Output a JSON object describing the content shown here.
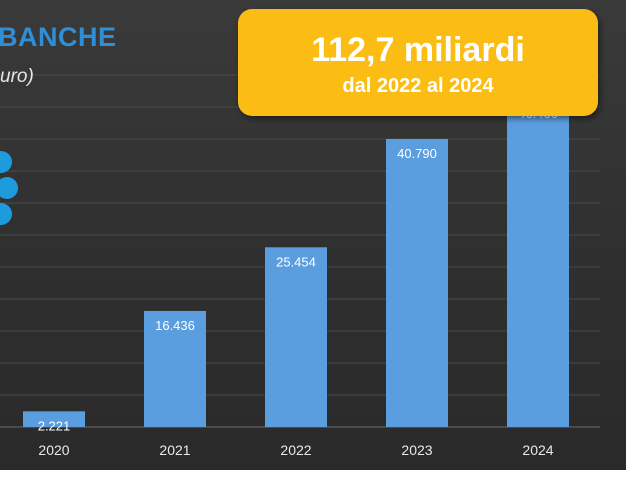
{
  "header": {
    "title": "BANCHE",
    "subtitle": "uro)"
  },
  "callout": {
    "main": "112,7 miliardi",
    "sub": "dal 2022 al 2024"
  },
  "colors": {
    "background": "#333333",
    "bar": "#5b9ee0",
    "title": "#2e8fd6",
    "callout": "#fbbd13",
    "gridline": "#4a4a4a"
  },
  "chart_data": {
    "type": "bar",
    "categories": [
      "2020",
      "2021",
      "2022",
      "2023",
      "2024"
    ],
    "values": [
      2221,
      16436,
      25454,
      40790,
      46466
    ],
    "value_labels": [
      "2.221",
      "16.436",
      "25.454",
      "40.790",
      "46.466"
    ],
    "title": "BANCHE",
    "subtitle": "uro)",
    "xlabel": "",
    "ylabel": "",
    "ylim": [
      0,
      50000
    ],
    "grid": true,
    "legend": "none"
  }
}
